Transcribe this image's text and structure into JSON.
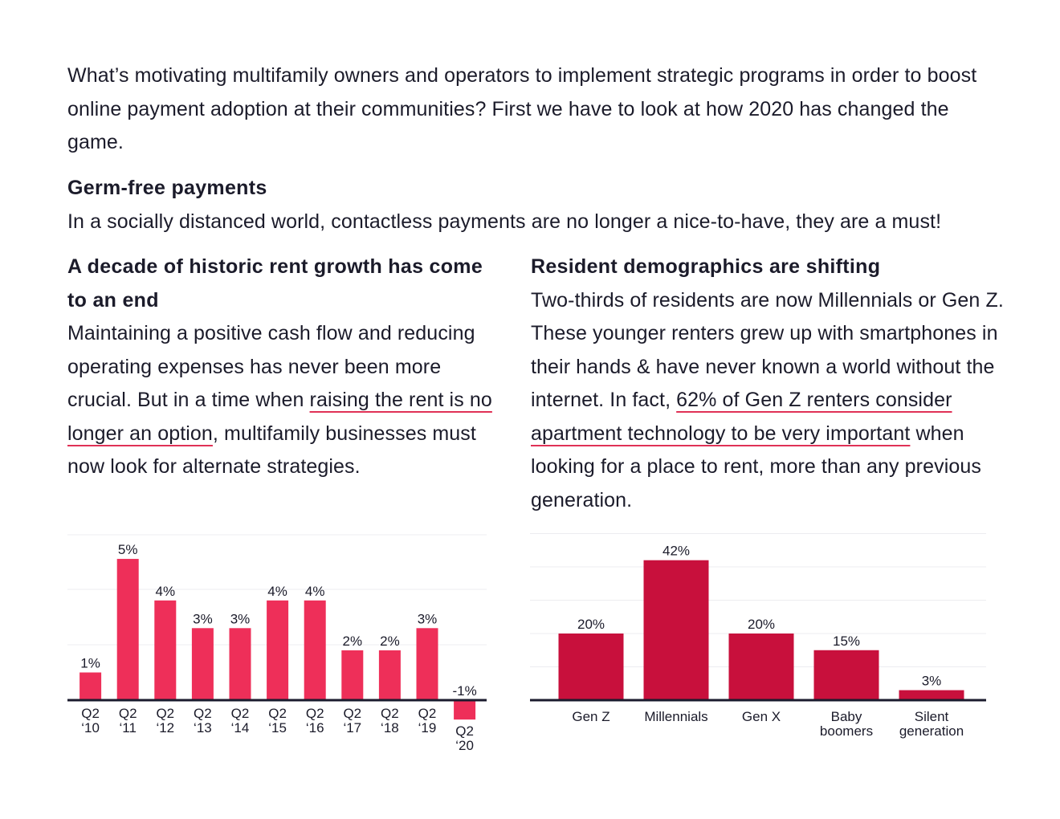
{
  "intro": {
    "text": "What’s motivating multifamily owners and operators to implement strategic programs in order to boost online payment adoption at their communities? First we have to look at how 2020 has changed the game."
  },
  "germ": {
    "heading": "Germ-free payments",
    "text": "In a socially distanced world, contactless payments are no longer a nice-to-have, they are a must!"
  },
  "left": {
    "heading": "A decade of historic rent growth has come to an end",
    "text_before": "Maintaining a positive cash flow and reducing operating expenses has never been more crucial. But in a time when ",
    "link": "raising the rent is no longer an option",
    "text_after": ", multifamily businesses must now look for alternate strategies."
  },
  "right": {
    "heading": "Resident demographics are shifting",
    "text_before": "Two-thirds of residents are now Millennials or Gen Z. These younger renters grew up with smartphones in their hands & have never known a world without the internet.  In fact, ",
    "link": "62% of Gen Z renters consider apartment technology to be very important",
    "text_after": " when looking for a place to rent, more than any previous generation."
  },
  "chart_data": [
    {
      "type": "bar",
      "title": "",
      "xlabel": "",
      "ylabel": "",
      "categories": [
        [
          "Q2",
          "‘10"
        ],
        [
          "Q2",
          "‘11"
        ],
        [
          "Q2",
          "‘12"
        ],
        [
          "Q2",
          "‘13"
        ],
        [
          "Q2",
          "‘14"
        ],
        [
          "Q2",
          "‘15"
        ],
        [
          "Q2",
          "‘16"
        ],
        [
          "Q2",
          "‘17"
        ],
        [
          "Q2",
          "‘18"
        ],
        [
          "Q2",
          "‘19"
        ],
        [
          "Q2",
          "‘20"
        ]
      ],
      "values": [
        1.0,
        5.1,
        3.6,
        2.6,
        2.6,
        3.6,
        3.6,
        1.8,
        1.8,
        2.6,
        -0.7
      ],
      "labels": [
        "1%",
        "5%",
        "4%",
        "3%",
        "3%",
        "4%",
        "4%",
        "2%",
        "2%",
        "3%",
        "-1%"
      ],
      "ylim": [
        -1,
        5.5
      ],
      "grid": true,
      "legend": "none",
      "color": "#ee2f59"
    },
    {
      "type": "bar",
      "title": "",
      "xlabel": "",
      "ylabel": "",
      "categories": [
        [
          "Gen Z"
        ],
        [
          "Millennials"
        ],
        [
          "Gen X"
        ],
        [
          "Baby",
          "boomers"
        ],
        [
          "Silent",
          "generation"
        ]
      ],
      "values": [
        20,
        42,
        20,
        15,
        3
      ],
      "labels": [
        "20%",
        "42%",
        "20%",
        "15%",
        "3%"
      ],
      "ylim": [
        0,
        50
      ],
      "grid": true,
      "legend": "none",
      "color": "#c8103c"
    }
  ]
}
